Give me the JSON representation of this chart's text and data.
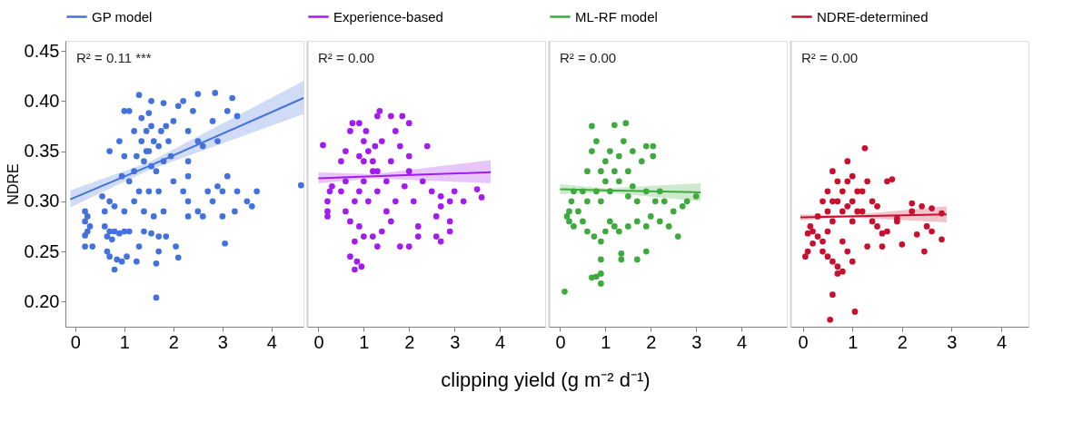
{
  "chart_data": [
    {
      "type": "scatter",
      "ylabel": "NDRE",
      "annotations": [
        "R² = 0.11 ***"
      ],
      "legend": "top",
      "xlim": [
        -0.2,
        4.65
      ],
      "xticks": [
        0,
        1,
        2,
        3,
        4
      ],
      "ylim": [
        0.175,
        0.46
      ],
      "yticks": [
        {
          "value": 0.2,
          "label": "0.20"
        },
        {
          "value": 0.25,
          "label": "0.25"
        },
        {
          "value": 0.3,
          "label": "0.30"
        },
        {
          "value": 0.35,
          "label": "0.35"
        },
        {
          "value": 0.4,
          "label": "0.40"
        },
        {
          "value": 0.45,
          "label": "0.45"
        }
      ],
      "series": [
        {
          "color": "#4472dc",
          "marker": "circle",
          "x": [
            0.2,
            0.2,
            0.25,
            0.2,
            0.2,
            0.35,
            0.25,
            0.3,
            0.6,
            0.55,
            0.7,
            0.8,
            0.6,
            0.7,
            0.8,
            0.9,
            1.0,
            1.1,
            0.65,
            0.75,
            0.65,
            0.7,
            0.85,
            0.8,
            0.95,
            1.05,
            1.25,
            1.3,
            1.4,
            1.55,
            1.7,
            1.85,
            1.7,
            1.65,
            2.1,
            2.05,
            1.65,
            1.0,
            1.2,
            1.4,
            1.6,
            1.8,
            1.3,
            1.5,
            1.7,
            1.1,
            0.95,
            1.2,
            1.0,
            0.7,
            0.9,
            1.0,
            1.1,
            1.2,
            1.35,
            1.45,
            1.55,
            1.6,
            1.7,
            1.5,
            1.4,
            1.55,
            1.65,
            1.8,
            1.9,
            1.85,
            2.0,
            2.1,
            2.2,
            2.4,
            2.5,
            2.3,
            2.5,
            2.6,
            2.8,
            2.85,
            3.2,
            3.1,
            3.3,
            2.9,
            1.35,
            1.5,
            1.8,
            1.55,
            1.3,
            2.3,
            2.3,
            2.0,
            2.2,
            2.3,
            2.3,
            2.5,
            2.6,
            2.7,
            2.8,
            2.9,
            3.1,
            3.0,
            3.3,
            3.5,
            3.6,
            3.7,
            3.0,
            3.25,
            3.05,
            4.6,
            1.45,
            1.25,
            1.75,
            1.95
          ],
          "values": [
            0.29,
            0.28,
            0.27,
            0.266,
            0.255,
            0.255,
            0.285,
            0.275,
            0.29,
            0.305,
            0.3,
            0.295,
            0.275,
            0.27,
            0.27,
            0.268,
            0.27,
            0.27,
            0.265,
            0.262,
            0.25,
            0.245,
            0.242,
            0.232,
            0.24,
            0.245,
            0.24,
            0.255,
            0.27,
            0.268,
            0.265,
            0.265,
            0.25,
            0.238,
            0.244,
            0.255,
            0.204,
            0.29,
            0.3,
            0.29,
            0.285,
            0.29,
            0.31,
            0.31,
            0.31,
            0.32,
            0.325,
            0.33,
            0.345,
            0.35,
            0.36,
            0.39,
            0.39,
            0.37,
            0.36,
            0.37,
            0.375,
            0.36,
            0.355,
            0.35,
            0.34,
            0.335,
            0.33,
            0.34,
            0.36,
            0.375,
            0.38,
            0.395,
            0.4,
            0.39,
            0.407,
            0.37,
            0.36,
            0.355,
            0.38,
            0.408,
            0.403,
            0.39,
            0.385,
            0.36,
            0.383,
            0.388,
            0.398,
            0.4,
            0.406,
            0.34,
            0.325,
            0.32,
            0.31,
            0.3,
            0.285,
            0.29,
            0.285,
            0.31,
            0.3,
            0.315,
            0.325,
            0.31,
            0.31,
            0.3,
            0.295,
            0.31,
            0.285,
            0.29,
            0.258,
            0.316,
            0.35,
            0.345,
            0.37,
            0.345
          ]
        },
        {
          "type": "line",
          "name": "GP model",
          "color": "#4472dc",
          "x": [
            -0.1,
            1.5,
            4.65
          ],
          "values": [
            0.302,
            0.335,
            0.403
          ],
          "lower": [
            0.294,
            0.331,
            0.387
          ],
          "upper": [
            0.311,
            0.339,
            0.42
          ]
        }
      ]
    },
    {
      "type": "scatter",
      "annotations": [
        "R² = 0.00"
      ],
      "legend": "top",
      "tick_labels": "x",
      "xlabel": "clipping yield (g m⁻² d⁻¹)",
      "xlim": [
        -0.25,
        5.0
      ],
      "xticks": [
        0,
        1,
        2,
        3,
        4
      ],
      "ylim": [
        0.175,
        0.46
      ],
      "series": [
        {
          "color": "#a21cf0",
          "marker": "circle",
          "x": [
            0.1,
            0.2,
            0.2,
            0.25,
            0.2,
            0.3,
            0.5,
            0.6,
            0.7,
            0.75,
            0.9,
            1.0,
            1.1,
            1.2,
            1.3,
            1.0,
            0.9,
            0.8,
            1.1,
            1.3,
            1.5,
            1.6,
            1.4,
            1.3,
            1.35,
            1.6,
            1.85,
            2.0,
            1.7,
            1.8,
            2.0,
            2.4,
            2.0,
            1.9,
            2.3,
            2.5,
            2.7,
            2.7,
            2.9,
            3.0,
            3.2,
            3.5,
            3.6,
            2.6,
            2.9,
            2.9,
            2.6,
            2.2,
            2.2,
            1.8,
            2.0,
            1.3,
            1.2,
            1.0,
            0.9,
            0.7,
            0.6,
            0.8,
            0.7,
            0.85,
            0.95,
            0.8,
            1.4,
            1.6,
            1.5,
            2.7,
            1.0,
            1.2,
            0.9,
            1.05,
            1.25,
            0.6,
            0.5,
            1.7,
            2.1
          ],
          "values": [
            0.356,
            0.3,
            0.29,
            0.31,
            0.285,
            0.315,
            0.34,
            0.35,
            0.37,
            0.378,
            0.378,
            0.36,
            0.35,
            0.34,
            0.33,
            0.32,
            0.31,
            0.3,
            0.3,
            0.31,
            0.32,
            0.34,
            0.36,
            0.385,
            0.39,
            0.385,
            0.385,
            0.378,
            0.37,
            0.355,
            0.345,
            0.355,
            0.33,
            0.315,
            0.32,
            0.31,
            0.305,
            0.295,
            0.3,
            0.31,
            0.3,
            0.312,
            0.304,
            0.285,
            0.28,
            0.27,
            0.265,
            0.275,
            0.265,
            0.255,
            0.255,
            0.255,
            0.265,
            0.265,
            0.275,
            0.28,
            0.29,
            0.26,
            0.245,
            0.24,
            0.235,
            0.232,
            0.27,
            0.28,
            0.29,
            0.26,
            0.34,
            0.33,
            0.345,
            0.37,
            0.355,
            0.32,
            0.31,
            0.3,
            0.3
          ]
        },
        {
          "type": "line",
          "name": "Experience-based",
          "color": "#a21cf0",
          "x": [
            0.0,
            1.2,
            3.8
          ],
          "values": [
            0.323,
            0.325,
            0.329
          ],
          "lower": [
            0.318,
            0.323,
            0.318
          ],
          "upper": [
            0.329,
            0.327,
            0.341
          ]
        }
      ]
    },
    {
      "type": "scatter",
      "annotations": [
        "R² = 0.00"
      ],
      "legend": "top",
      "tick_labels": "x",
      "xlim": [
        -0.25,
        5.0
      ],
      "xticks": [
        0,
        1,
        2,
        3,
        4
      ],
      "ylim": [
        0.175,
        0.46
      ],
      "series": [
        {
          "color": "#3caa3c",
          "marker": "circle",
          "x": [
            0.1,
            0.7,
            0.9,
            0.9,
            0.8,
            0.9,
            1.35,
            1.35,
            1.7,
            1.9,
            0.2,
            0.2,
            0.15,
            0.25,
            0.3,
            0.3,
            0.5,
            0.6,
            0.75,
            0.9,
            1.0,
            1.1,
            1.2,
            1.3,
            1.5,
            1.7,
            1.9,
            2.0,
            2.2,
            2.4,
            2.6,
            2.5,
            2.7,
            2.8,
            3.0,
            2.3,
            2.1,
            1.7,
            1.5,
            0.5,
            0.6,
            0.7,
            0.8,
            0.7,
            1.2,
            1.45,
            1.4,
            1.6,
            1.9,
            2.05,
            2.05,
            1.8,
            1.5,
            1.3,
            1.1,
            0.9,
            1.0,
            1.1,
            0.9,
            1.2,
            1.0,
            0.8,
            1.3,
            0.6,
            0.4,
            1.6,
            1.9,
            2.2
          ],
          "values": [
            0.21,
            0.224,
            0.218,
            0.228,
            0.225,
            0.242,
            0.242,
            0.248,
            0.242,
            0.25,
            0.28,
            0.29,
            0.285,
            0.3,
            0.31,
            0.275,
            0.28,
            0.27,
            0.265,
            0.26,
            0.27,
            0.28,
            0.275,
            0.27,
            0.275,
            0.28,
            0.275,
            0.285,
            0.28,
            0.275,
            0.265,
            0.29,
            0.295,
            0.3,
            0.305,
            0.3,
            0.3,
            0.3,
            0.305,
            0.31,
            0.33,
            0.35,
            0.36,
            0.375,
            0.376,
            0.378,
            0.36,
            0.35,
            0.355,
            0.355,
            0.345,
            0.34,
            0.33,
            0.32,
            0.31,
            0.3,
            0.34,
            0.35,
            0.33,
            0.33,
            0.32,
            0.31,
            0.345,
            0.3,
            0.29,
            0.315,
            0.31,
            0.31
          ]
        },
        {
          "type": "line",
          "name": "ML-RF model",
          "color": "#3caa3c",
          "x": [
            0.0,
            1.0,
            3.1
          ],
          "values": [
            0.312,
            0.311,
            0.309
          ],
          "lower": [
            0.307,
            0.309,
            0.3
          ],
          "upper": [
            0.317,
            0.313,
            0.318
          ]
        }
      ]
    },
    {
      "type": "scatter",
      "annotations": [
        "R² = 0.00"
      ],
      "legend": "top",
      "tick_labels": "x",
      "xlim": [
        -0.25,
        4.55
      ],
      "xticks": [
        0,
        1,
        2,
        3,
        4
      ],
      "ylim": [
        0.175,
        0.46
      ],
      "series": [
        {
          "color": "#c8102e",
          "marker": "circle",
          "x": [
            0.55,
            1.05,
            0.6,
            0.7,
            0.8,
            0.7,
            0.6,
            0.5,
            0.4,
            0.2,
            0.1,
            0.05,
            0.2,
            0.1,
            0.15,
            0.3,
            0.4,
            0.5,
            0.6,
            0.8,
            0.9,
            1.0,
            1.3,
            1.6,
            2.0,
            2.45,
            2.8,
            2.6,
            2.5,
            2.3,
            1.7,
            1.6,
            1.5,
            1.4,
            1.9,
            1.9,
            1.2,
            1.5,
            2.2,
            2.4,
            2.6,
            2.2,
            2.8,
            1.7,
            1.3,
            1.2,
            0.9,
            1.25,
            1.8,
            0.5,
            0.4,
            0.5,
            0.7,
            0.8,
            0.9,
            0.7,
            1.0,
            1.1,
            1.0,
            0.8,
            0.6,
            0.9,
            1.1,
            0.6,
            1.0,
            1.4,
            0.3
          ],
          "values": [
            0.182,
            0.19,
            0.207,
            0.228,
            0.23,
            0.235,
            0.24,
            0.245,
            0.25,
            0.258,
            0.25,
            0.245,
            0.27,
            0.268,
            0.275,
            0.265,
            0.26,
            0.27,
            0.28,
            0.26,
            0.25,
            0.24,
            0.255,
            0.255,
            0.257,
            0.25,
            0.262,
            0.27,
            0.275,
            0.267,
            0.27,
            0.268,
            0.275,
            0.28,
            0.283,
            0.28,
            0.29,
            0.295,
            0.29,
            0.295,
            0.293,
            0.298,
            0.288,
            0.32,
            0.32,
            0.31,
            0.34,
            0.353,
            0.322,
            0.31,
            0.3,
            0.29,
            0.3,
            0.31,
            0.32,
            0.32,
            0.3,
            0.29,
            0.28,
            0.29,
            0.3,
            0.295,
            0.31,
            0.33,
            0.325,
            0.3,
            0.285
          ]
        },
        {
          "type": "line",
          "name": "NDRE-determined",
          "color": "#c8102e",
          "x": [
            -0.05,
            0.9,
            2.9
          ],
          "values": [
            0.284,
            0.285,
            0.287
          ],
          "lower": [
            0.281,
            0.284,
            0.279
          ],
          "upper": [
            0.287,
            0.286,
            0.295
          ]
        }
      ]
    }
  ]
}
